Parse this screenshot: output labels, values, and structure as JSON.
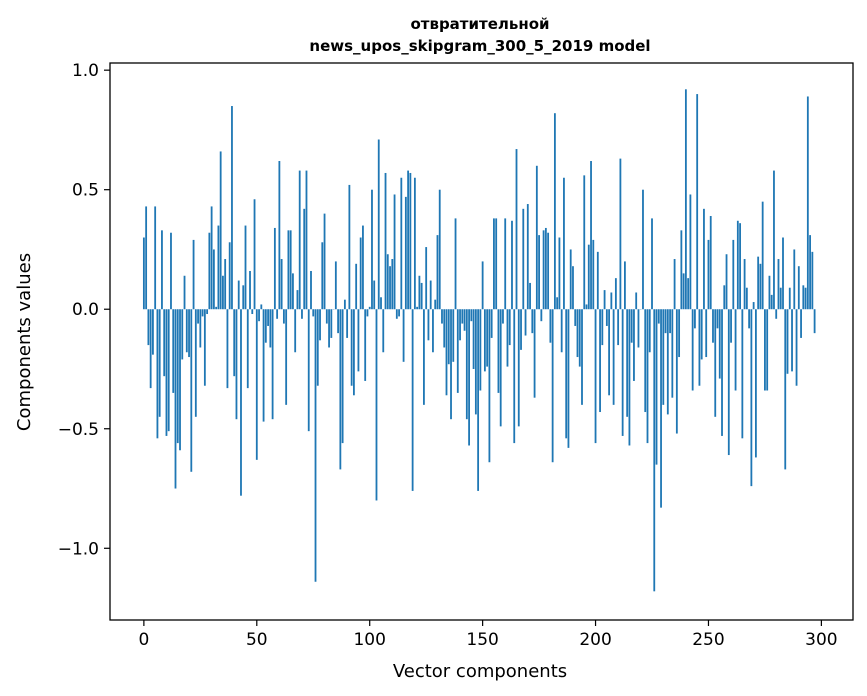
{
  "chart_data": {
    "type": "bar",
    "title_line1": "отвратительной",
    "title_line2": "news_upos_skipgram_300_5_2019 model",
    "xlabel": "Vector components",
    "ylabel": "Components values",
    "xlim": [
      -15,
      314
    ],
    "ylim": [
      -1.3,
      1.03
    ],
    "x_ticks": [
      0,
      50,
      100,
      150,
      200,
      250,
      300
    ],
    "x_tick_labels": [
      "0",
      "50",
      "100",
      "150",
      "200",
      "250",
      "300"
    ],
    "y_ticks": [
      1.0,
      0.5,
      0.0,
      -0.5,
      -1.0
    ],
    "y_tick_labels": [
      "1.0",
      "0.5",
      "0.0",
      "−0.5",
      "−1.0"
    ],
    "bar_color": "#1f77b4",
    "values": [
      0.3,
      0.43,
      -0.15,
      -0.33,
      -0.19,
      0.43,
      -0.54,
      -0.45,
      0.33,
      -0.28,
      -0.53,
      -0.51,
      0.32,
      -0.35,
      -0.75,
      -0.56,
      -0.59,
      -0.21,
      0.14,
      -0.18,
      -0.2,
      -0.68,
      0.29,
      -0.45,
      -0.06,
      -0.16,
      -0.03,
      -0.32,
      -0.02,
      0.32,
      0.43,
      0.25,
      0.01,
      0.35,
      0.66,
      0.14,
      0.21,
      -0.33,
      0.28,
      0.85,
      -0.28,
      -0.46,
      0.12,
      -0.78,
      0.1,
      0.35,
      -0.33,
      0.16,
      -0.02,
      0.46,
      -0.63,
      -0.05,
      0.02,
      -0.47,
      -0.14,
      -0.07,
      -0.16,
      -0.46,
      0.34,
      -0.04,
      0.62,
      0.21,
      -0.06,
      -0.4,
      0.33,
      0.33,
      0.15,
      -0.18,
      0.08,
      0.58,
      -0.04,
      0.42,
      0.58,
      -0.51,
      0.16,
      -0.03,
      -1.14,
      -0.32,
      -0.13,
      0.28,
      0.4,
      -0.06,
      -0.16,
      -0.12,
      0.0,
      0.2,
      -0.1,
      -0.67,
      -0.56,
      0.04,
      -0.12,
      0.52,
      -0.32,
      -0.36,
      0.19,
      -0.26,
      0.3,
      0.35,
      -0.3,
      -0.03,
      0.01,
      0.5,
      0.12,
      -0.8,
      0.71,
      0.05,
      -0.18,
      0.57,
      0.23,
      0.18,
      0.21,
      0.48,
      -0.04,
      -0.03,
      0.55,
      -0.22,
      0.47,
      0.58,
      0.57,
      -0.76,
      0.55,
      0.01,
      0.14,
      0.11,
      -0.4,
      0.26,
      -0.13,
      0.12,
      -0.18,
      0.04,
      0.31,
      0.5,
      -0.06,
      -0.16,
      -0.36,
      -0.23,
      -0.46,
      -0.22,
      0.38,
      -0.35,
      -0.13,
      -0.06,
      -0.09,
      -0.46,
      -0.57,
      -0.05,
      -0.25,
      -0.44,
      -0.76,
      -0.34,
      0.2,
      -0.26,
      -0.24,
      -0.64,
      -0.12,
      0.38,
      0.38,
      -0.35,
      -0.49,
      -0.06,
      0.38,
      -0.24,
      -0.15,
      0.37,
      -0.56,
      0.67,
      -0.49,
      -0.17,
      0.42,
      -0.11,
      0.44,
      0.11,
      -0.1,
      -0.37,
      0.6,
      0.31,
      -0.05,
      0.33,
      0.34,
      0.32,
      -0.14,
      -0.64,
      0.82,
      0.05,
      0.3,
      -0.18,
      0.55,
      -0.54,
      -0.58,
      0.25,
      0.18,
      -0.07,
      -0.2,
      -0.24,
      -0.4,
      0.56,
      0.02,
      0.27,
      0.62,
      0.29,
      -0.56,
      0.24,
      -0.43,
      -0.15,
      0.08,
      -0.07,
      -0.36,
      0.07,
      -0.4,
      0.13,
      -0.15,
      0.63,
      -0.53,
      0.2,
      -0.45,
      -0.57,
      -0.14,
      -0.3,
      0.07,
      -0.16,
      0.0,
      0.5,
      -0.43,
      -0.56,
      -0.18,
      0.38,
      -1.18,
      -0.65,
      -0.06,
      -0.83,
      -0.4,
      -0.1,
      -0.44,
      -0.1,
      -0.37,
      0.21,
      -0.52,
      -0.2,
      0.33,
      0.15,
      0.92,
      0.13,
      0.48,
      -0.34,
      -0.08,
      0.9,
      -0.32,
      -0.21,
      0.42,
      -0.2,
      0.29,
      0.39,
      -0.14,
      -0.45,
      -0.08,
      -0.29,
      -0.53,
      0.1,
      0.23,
      -0.61,
      -0.14,
      0.29,
      -0.34,
      0.37,
      0.36,
      -0.54,
      0.21,
      0.09,
      -0.08,
      -0.74,
      0.03,
      -0.62,
      0.22,
      0.19,
      0.45,
      -0.34,
      -0.34,
      0.14,
      0.06,
      0.58,
      -0.04,
      0.21,
      0.09,
      0.3,
      -0.67,
      -0.27,
      0.09,
      -0.26,
      0.25,
      -0.32,
      0.18,
      -0.12,
      0.1,
      0.09,
      0.89,
      0.31,
      0.24,
      -0.1
    ]
  }
}
